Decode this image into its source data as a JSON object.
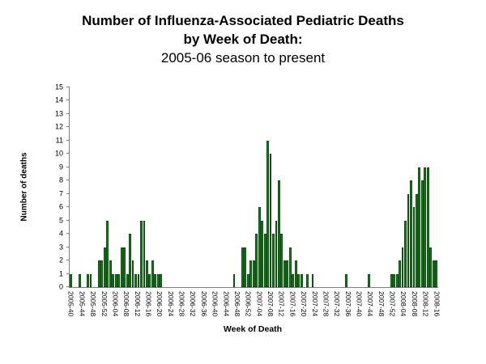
{
  "title": {
    "line1": "Number of Influenza-Associated Pediatric Deaths",
    "line2": "by Week of Death:",
    "line3": "2005-06 season to present"
  },
  "chart_data": {
    "type": "bar",
    "title": "Number of Influenza-Associated Pediatric Deaths by Week of Death: 2005-06 season to present",
    "xlabel": "Week of Death",
    "ylabel": "Number of deaths",
    "ylim": [
      0,
      15
    ],
    "y_tick_step": 1,
    "x_tick_every": 4,
    "bar_color": "#17761b",
    "axis_color": "#808080",
    "grid": false,
    "legend": "none",
    "categories": [
      "2005-40",
      "2005-41",
      "2005-42",
      "2005-43",
      "2005-44",
      "2005-45",
      "2005-46",
      "2005-47",
      "2005-48",
      "2005-49",
      "2005-50",
      "2005-51",
      "2005-52",
      "2006-01",
      "2006-02",
      "2006-03",
      "2006-04",
      "2006-05",
      "2006-06",
      "2006-07",
      "2006-08",
      "2006-09",
      "2006-10",
      "2006-11",
      "2006-12",
      "2006-13",
      "2006-14",
      "2006-15",
      "2006-16",
      "2006-17",
      "2006-18",
      "2006-19",
      "2006-20",
      "2006-21",
      "2006-22",
      "2006-23",
      "2006-24",
      "2006-25",
      "2006-26",
      "2006-27",
      "2006-28",
      "2006-29",
      "2006-30",
      "2006-31",
      "2006-32",
      "2006-33",
      "2006-34",
      "2006-35",
      "2006-36",
      "2006-37",
      "2006-38",
      "2006-39",
      "2006-40",
      "2006-41",
      "2006-42",
      "2006-43",
      "2006-44",
      "2006-45",
      "2006-46",
      "2006-47",
      "2006-48",
      "2006-49",
      "2006-50",
      "2006-51",
      "2006-52",
      "2007-01",
      "2007-02",
      "2007-03",
      "2007-04",
      "2007-05",
      "2007-06",
      "2007-07",
      "2007-08",
      "2007-09",
      "2007-10",
      "2007-11",
      "2007-12",
      "2007-13",
      "2007-14",
      "2007-15",
      "2007-16",
      "2007-17",
      "2007-18",
      "2007-19",
      "2007-20",
      "2007-21",
      "2007-22",
      "2007-23",
      "2007-24",
      "2007-25",
      "2007-26",
      "2007-27",
      "2007-28",
      "2007-29",
      "2007-30",
      "2007-31",
      "2007-32",
      "2007-33",
      "2007-34",
      "2007-35",
      "2007-36",
      "2007-37",
      "2007-38",
      "2007-39",
      "2007-40",
      "2007-41",
      "2007-42",
      "2007-43",
      "2007-44",
      "2007-45",
      "2007-46",
      "2007-47",
      "2007-48",
      "2007-49",
      "2007-50",
      "2007-51",
      "2007-52",
      "2008-01",
      "2008-02",
      "2008-03",
      "2008-04",
      "2008-05",
      "2008-06",
      "2008-07",
      "2008-08",
      "2008-09",
      "2008-10",
      "2008-11",
      "2008-12",
      "2008-13",
      "2008-14",
      "2008-15",
      "2008-16"
    ],
    "values": [
      1,
      0,
      0,
      1,
      0,
      0,
      1,
      1,
      0,
      0,
      2,
      2,
      3,
      5,
      2,
      1,
      1,
      1,
      3,
      3,
      1,
      4,
      2,
      1,
      1,
      5,
      5,
      2,
      1,
      2,
      1,
      1,
      1,
      0,
      0,
      0,
      0,
      0,
      0,
      0,
      0,
      0,
      0,
      0,
      0,
      0,
      0,
      0,
      0,
      0,
      0,
      0,
      0,
      0,
      0,
      0,
      0,
      0,
      1,
      0,
      0,
      3,
      3,
      1,
      2,
      2,
      4,
      6,
      5,
      4,
      11,
      10,
      4,
      5,
      8,
      4,
      2,
      2,
      3,
      1,
      2,
      1,
      1,
      0,
      1,
      0,
      1,
      0,
      0,
      0,
      0,
      0,
      0,
      0,
      0,
      0,
      0,
      0,
      1,
      0,
      0,
      0,
      0,
      0,
      0,
      0,
      1,
      0,
      0,
      0,
      0,
      0,
      0,
      0,
      1,
      1,
      1,
      2,
      3,
      5,
      7,
      8,
      6,
      7,
      9,
      8,
      9,
      9,
      3,
      2,
      2
    ]
  }
}
